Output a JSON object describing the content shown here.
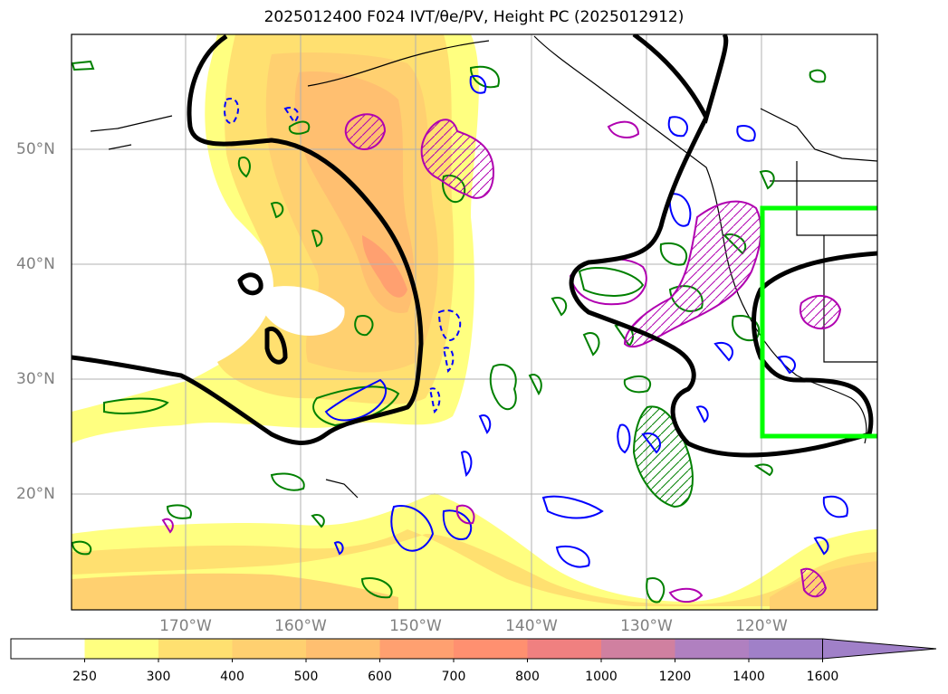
{
  "title": "2025012400 F024 IVT/θe/PV, Height PC (2025012912)",
  "map": {
    "lat_labels": [
      "50°N",
      "40°N",
      "30°N",
      "20°N"
    ],
    "lon_labels": [
      "170°W",
      "160°W",
      "150°W",
      "140°W",
      "130°W",
      "120°W"
    ],
    "overlay_colors": {
      "height_contour": "#000000",
      "pv_contour": "#b000b0",
      "theta_e_positive": "#008000",
      "theta_e_negative": "#0000ff",
      "target_box": "#00ff00"
    }
  },
  "colorbar": {
    "labels": [
      "250",
      "300",
      "400",
      "500",
      "600",
      "700",
      "800",
      "1000",
      "1200",
      "1400",
      "1600"
    ],
    "colors": [
      "#ffffff",
      "#ffff80",
      "#ffe070",
      "#ffd070",
      "#ffbf70",
      "#ffa070",
      "#ff9070",
      "#f08080",
      "#d080a0",
      "#b080c0",
      "#a080c8"
    ],
    "extend": "max"
  }
}
